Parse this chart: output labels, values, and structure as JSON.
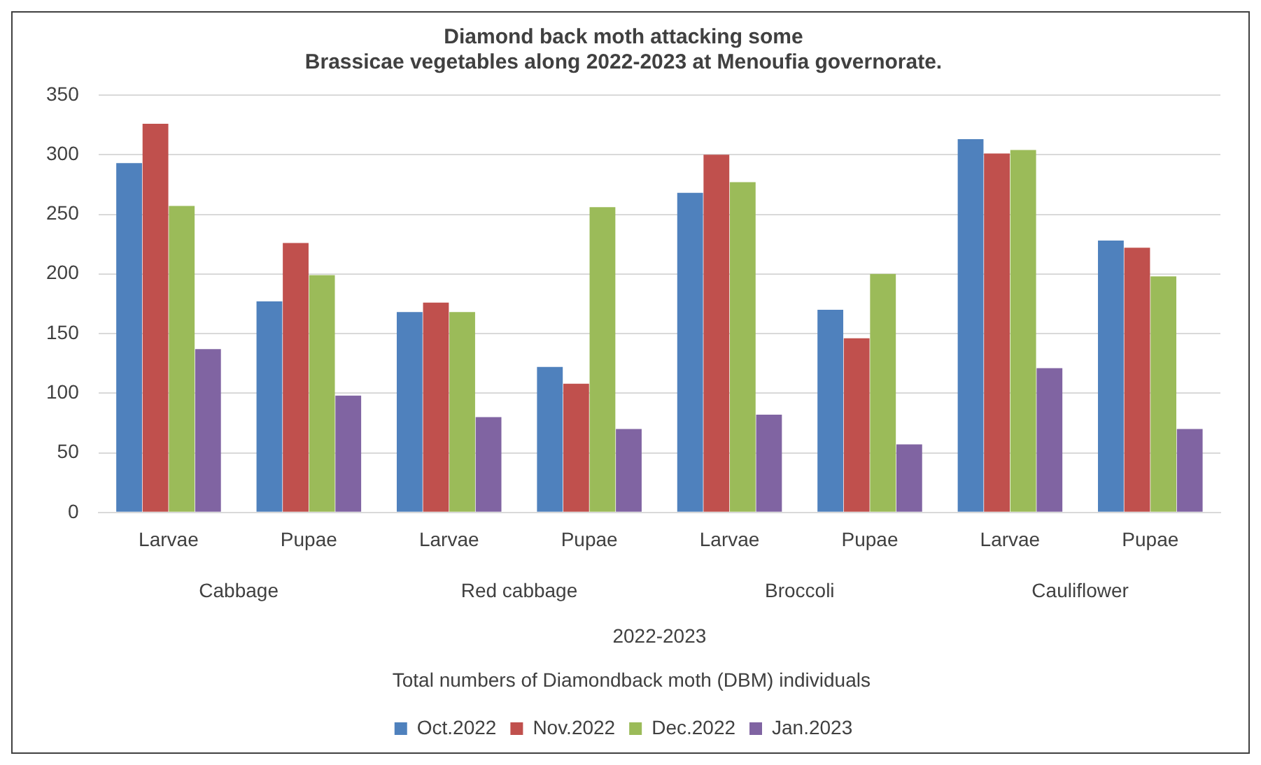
{
  "chart_data": {
    "type": "bar",
    "title": "Diamond back moth attacking some\nBrassicae vegetables along 2022-2023 at Menoufia governorate.",
    "xlabel": "2022-2023",
    "categories": [
      "Larvae",
      "Pupae",
      "Larvae",
      "Pupae",
      "Larvae",
      "Pupae",
      "Larvae",
      "Pupae"
    ],
    "series": [
      {
        "name": "Oct.2022",
        "color": "#4f81bd",
        "values": [
          293,
          177,
          168,
          122,
          268,
          170,
          313,
          228
        ]
      },
      {
        "name": "Nov.2022",
        "color": "#c0504d",
        "values": [
          326,
          226,
          176,
          108,
          300,
          146,
          301,
          222
        ]
      },
      {
        "name": "Dec.2022",
        "color": "#9bbb59",
        "values": [
          257,
          199,
          168,
          256,
          277,
          200,
          304,
          198
        ]
      },
      {
        "name": "Jan.2023",
        "color": "#8064a2",
        "values": [
          137,
          98,
          80,
          70,
          82,
          57,
          121,
          70
        ]
      }
    ],
    "annotations": [
      "Cabbage",
      "Red cabbage",
      "Broccoli",
      "Cauliflower",
      "Total numbers of Diamondback moth (DBM) individuals"
    ],
    "ylim": [
      0,
      350
    ],
    "yticks": [
      0,
      50,
      100,
      150,
      200,
      250,
      300,
      350
    ],
    "grid": "y",
    "legend": "bottom"
  }
}
